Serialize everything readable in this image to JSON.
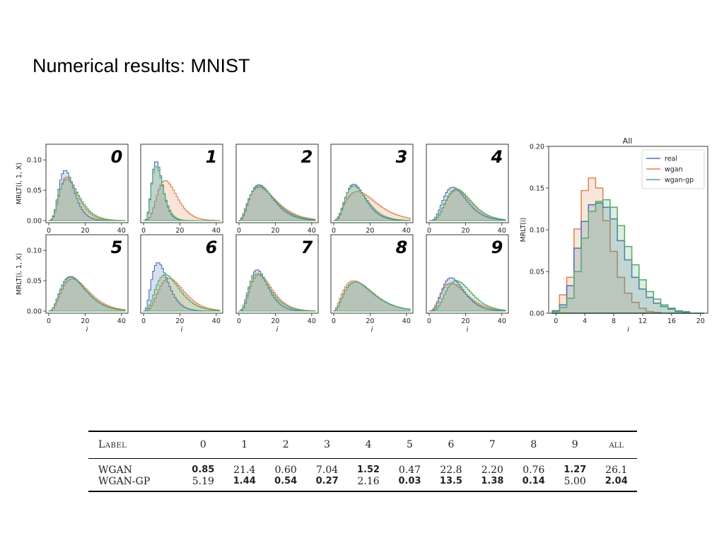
{
  "slide": {
    "title": "Numerical results: MNIST"
  },
  "colors": {
    "real": "#4c72b0",
    "wgan": "#dd8452",
    "wgan_gp": "#55a868"
  },
  "chart_data": [
    {
      "type": "area",
      "label": "0",
      "xlim": [
        0,
        42
      ],
      "ylim": [
        0,
        0.12
      ],
      "yticks": [
        0.0,
        0.05,
        0.1
      ],
      "ytick_labels": [
        "0.00",
        "0.05",
        "0.10"
      ],
      "xticks": [
        0,
        20,
        40
      ],
      "ylabel": "MRLT(i, 1, X)",
      "xlabel": "",
      "series": [
        {
          "name": "real",
          "peak_x": 9,
          "peak_y": 0.083,
          "width": 4.2
        },
        {
          "name": "wgan",
          "peak_x": 10,
          "peak_y": 0.072,
          "width": 5.0
        },
        {
          "name": "wgan-gp",
          "peak_x": 10,
          "peak_y": 0.068,
          "width": 5.5
        }
      ]
    },
    {
      "type": "area",
      "label": "1",
      "xlim": [
        0,
        42
      ],
      "ylim": [
        0,
        0.12
      ],
      "xticks": [
        0,
        20,
        40
      ],
      "xlabel": "",
      "series": [
        {
          "name": "real",
          "peak_x": 7,
          "peak_y": 0.098,
          "width": 3.0
        },
        {
          "name": "wgan",
          "peak_x": 12,
          "peak_y": 0.066,
          "width": 5.5
        },
        {
          "name": "wgan-gp",
          "peak_x": 7,
          "peak_y": 0.09,
          "width": 3.2
        }
      ]
    },
    {
      "type": "area",
      "label": "2",
      "xlim": [
        0,
        42
      ],
      "ylim": [
        0,
        0.12
      ],
      "xticks": [
        0,
        20,
        40
      ],
      "xlabel": "",
      "series": [
        {
          "name": "real",
          "peak_x": 11,
          "peak_y": 0.059,
          "width": 6.5
        },
        {
          "name": "wgan",
          "peak_x": 11,
          "peak_y": 0.055,
          "width": 7.5
        },
        {
          "name": "wgan-gp",
          "peak_x": 11,
          "peak_y": 0.057,
          "width": 7.0
        }
      ]
    },
    {
      "type": "area",
      "label": "3",
      "xlim": [
        0,
        42
      ],
      "ylim": [
        0,
        0.12
      ],
      "xticks": [
        0,
        20,
        40
      ],
      "xlabel": "",
      "series": [
        {
          "name": "real",
          "peak_x": 11,
          "peak_y": 0.06,
          "width": 5.5
        },
        {
          "name": "wgan",
          "peak_x": 13,
          "peak_y": 0.048,
          "width": 8.5
        },
        {
          "name": "wgan-gp",
          "peak_x": 11,
          "peak_y": 0.057,
          "width": 6.0
        }
      ]
    },
    {
      "type": "area",
      "label": "4",
      "xlim": [
        0,
        42
      ],
      "ylim": [
        0,
        0.12
      ],
      "xticks": [
        0,
        20,
        40
      ],
      "xlabel": "",
      "series": [
        {
          "name": "real",
          "peak_x": 13,
          "peak_y": 0.055,
          "width": 6.5
        },
        {
          "name": "wgan",
          "peak_x": 15,
          "peak_y": 0.05,
          "width": 7.0
        },
        {
          "name": "wgan-gp",
          "peak_x": 15,
          "peak_y": 0.052,
          "width": 7.0
        }
      ]
    },
    {
      "type": "area",
      "label": "5",
      "xlim": [
        0,
        42
      ],
      "ylim": [
        0,
        0.12
      ],
      "yticks": [
        0.0,
        0.05,
        0.1
      ],
      "ytick_labels": [
        "0.00",
        "0.05",
        "0.10"
      ],
      "xticks": [
        0,
        20,
        40
      ],
      "ylabel": "MRLT(i, 1, X)",
      "xlabel": "i",
      "series": [
        {
          "name": "real",
          "peak_x": 12,
          "peak_y": 0.057,
          "width": 7.0
        },
        {
          "name": "wgan",
          "peak_x": 13,
          "peak_y": 0.053,
          "width": 7.5
        },
        {
          "name": "wgan-gp",
          "peak_x": 12,
          "peak_y": 0.056,
          "width": 7.0
        }
      ]
    },
    {
      "type": "area",
      "label": "6",
      "xlim": [
        0,
        42
      ],
      "ylim": [
        0,
        0.12
      ],
      "xticks": [
        0,
        20,
        40
      ],
      "xlabel": "i",
      "series": [
        {
          "name": "real",
          "peak_x": 8,
          "peak_y": 0.08,
          "width": 4.5
        },
        {
          "name": "wgan",
          "peak_x": 14,
          "peak_y": 0.054,
          "width": 7.0
        },
        {
          "name": "wgan-gp",
          "peak_x": 12,
          "peak_y": 0.06,
          "width": 6.5
        }
      ]
    },
    {
      "type": "area",
      "label": "7",
      "xlim": [
        0,
        42
      ],
      "ylim": [
        0,
        0.12
      ],
      "xticks": [
        0,
        20,
        40
      ],
      "xlabel": "i",
      "series": [
        {
          "name": "real",
          "peak_x": 10,
          "peak_y": 0.068,
          "width": 5.0
        },
        {
          "name": "wgan",
          "peak_x": 11,
          "peak_y": 0.06,
          "width": 6.0
        },
        {
          "name": "wgan-gp",
          "peak_x": 10,
          "peak_y": 0.062,
          "width": 5.8
        }
      ]
    },
    {
      "type": "area",
      "label": "8",
      "xlim": [
        0,
        42
      ],
      "ylim": [
        0,
        0.12
      ],
      "xticks": [
        0,
        20,
        40
      ],
      "xlabel": "i",
      "series": [
        {
          "name": "real",
          "peak_x": 12,
          "peak_y": 0.048,
          "width": 8.0
        },
        {
          "name": "wgan",
          "peak_x": 11,
          "peak_y": 0.05,
          "width": 8.0
        },
        {
          "name": "wgan-gp",
          "peak_x": 12,
          "peak_y": 0.048,
          "width": 8.0
        }
      ]
    },
    {
      "type": "area",
      "label": "9",
      "xlim": [
        0,
        42
      ],
      "ylim": [
        0,
        0.12
      ],
      "xticks": [
        0,
        20,
        40
      ],
      "xlabel": "i",
      "series": [
        {
          "name": "real",
          "peak_x": 12,
          "peak_y": 0.055,
          "width": 6.0
        },
        {
          "name": "wgan",
          "peak_x": 12,
          "peak_y": 0.046,
          "width": 7.0
        },
        {
          "name": "wgan-gp",
          "peak_x": 15,
          "peak_y": 0.05,
          "width": 7.0
        }
      ]
    },
    {
      "type": "bar",
      "title": "All",
      "xlim": [
        -1,
        21
      ],
      "ylim": [
        0,
        0.2
      ],
      "xticks": [
        0,
        4,
        8,
        12,
        16,
        20
      ],
      "yticks": [
        0.0,
        0.05,
        0.1,
        0.15,
        0.2
      ],
      "ytick_labels": [
        "0.00",
        "0.05",
        "0.10",
        "0.15",
        "0.20"
      ],
      "xlabel": "i",
      "ylabel": "MRLT(i)",
      "legend_position": "top-right",
      "series": [
        {
          "name": "real",
          "values": [
            0.003,
            0.01,
            0.033,
            0.078,
            0.11,
            0.13,
            0.132,
            0.127,
            0.113,
            0.087,
            0.064,
            0.043,
            0.029,
            0.019,
            0.012,
            0.008,
            0.005,
            0.002,
            0.001,
            0.0,
            0.0
          ]
        },
        {
          "name": "wgan",
          "values": [
            0.003,
            0.022,
            0.043,
            0.101,
            0.147,
            0.162,
            0.15,
            0.111,
            0.074,
            0.043,
            0.024,
            0.013,
            0.006,
            0.002,
            0.001,
            0.0,
            0.0,
            0.0,
            0.0,
            0.0,
            0.0
          ]
        },
        {
          "name": "wgan-gp",
          "values": [
            0.002,
            0.007,
            0.018,
            0.05,
            0.09,
            0.122,
            0.134,
            0.136,
            0.127,
            0.105,
            0.08,
            0.058,
            0.04,
            0.026,
            0.017,
            0.01,
            0.006,
            0.003,
            0.002,
            0.0,
            0.0
          ]
        }
      ]
    }
  ],
  "table": {
    "header": [
      "Label",
      "0",
      "1",
      "2",
      "3",
      "4",
      "5",
      "6",
      "7",
      "8",
      "9",
      "all"
    ],
    "rows": [
      {
        "name": "WGAN",
        "values": [
          "0.85",
          "21.4",
          "0.60",
          "7.04",
          "1.52",
          "0.47",
          "22.8",
          "2.20",
          "0.76",
          "1.27",
          "26.1"
        ],
        "bold": [
          true,
          false,
          false,
          false,
          true,
          false,
          false,
          false,
          false,
          true,
          false
        ]
      },
      {
        "name": "WGAN-GP",
        "values": [
          "5.19",
          "1.44",
          "0.54",
          "0.27",
          "2.16",
          "0.03",
          "13.5",
          "1.38",
          "0.14",
          "5.00",
          "2.04"
        ],
        "bold": [
          false,
          true,
          true,
          true,
          false,
          true,
          true,
          true,
          true,
          false,
          true
        ]
      }
    ]
  }
}
